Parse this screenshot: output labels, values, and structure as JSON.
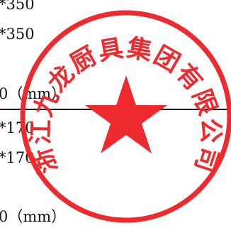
{
  "document": {
    "lines": [
      "*350",
      "*350",
      "0（mm）",
      "*170",
      "*170",
      "0（mm）"
    ]
  },
  "seal": {
    "company_name": "浙江九龙厨具集团有限公司",
    "color": "#ef2a2f",
    "icon": "star-icon"
  },
  "colors": {
    "text": "#111111",
    "rule": "#111111",
    "background": "#ffffff"
  }
}
